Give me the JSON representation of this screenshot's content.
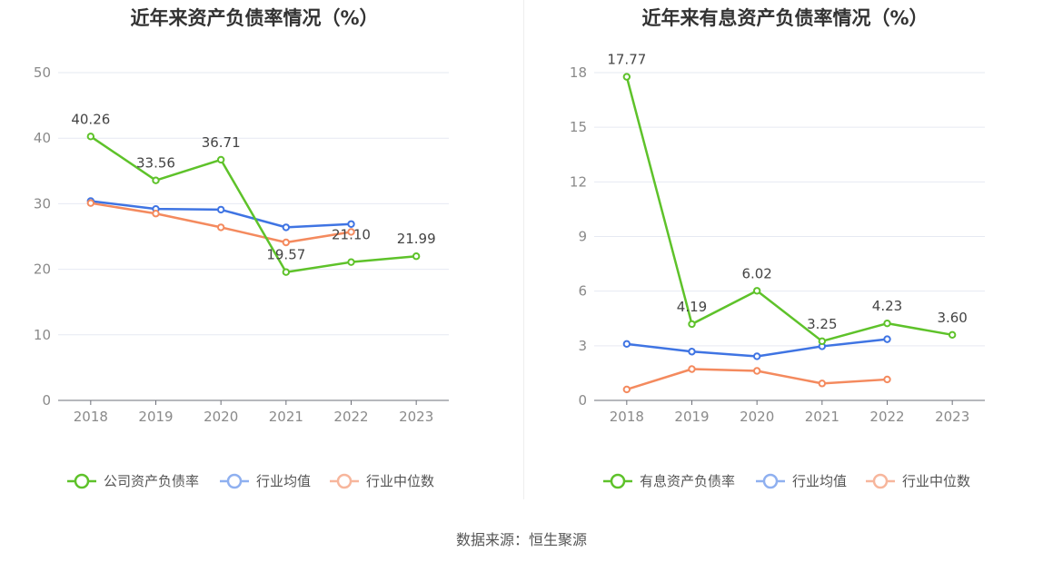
{
  "chart_data": [
    {
      "type": "line",
      "title": "近年来资产负债率情况（%）",
      "categories": [
        "2018",
        "2019",
        "2020",
        "2021",
        "2022",
        "2023"
      ],
      "ylim": [
        0,
        50
      ],
      "yticks": [
        0,
        10,
        20,
        30,
        40,
        50
      ],
      "ytick_labels": [
        "0",
        "10",
        "20",
        "30",
        "40",
        "50"
      ],
      "series": [
        {
          "name": "公司资产负债率",
          "color": "#5ec22a",
          "values": [
            40.26,
            33.56,
            36.71,
            19.57,
            21.1,
            21.99
          ],
          "labels": [
            "40.26",
            "33.56",
            "36.71",
            "19.57",
            "21.10",
            "21.99"
          ],
          "show_labels": true,
          "legend_color": "#5ec22a"
        },
        {
          "name": "行业均值",
          "color": "#3f74e3",
          "values": [
            30.4,
            29.2,
            29.1,
            26.4,
            26.9,
            null
          ],
          "show_labels": false,
          "legend_color": "#8fb0f0"
        },
        {
          "name": "行业中位数",
          "color": "#f48a5e",
          "values": [
            30.1,
            28.5,
            26.4,
            24.1,
            25.7,
            null
          ],
          "show_labels": false,
          "legend_color": "#f7b69c"
        }
      ]
    },
    {
      "type": "line",
      "title": "近年来有息资产负债率情况（%）",
      "categories": [
        "2018",
        "2019",
        "2020",
        "2021",
        "2022",
        "2023"
      ],
      "ylim": [
        0,
        18
      ],
      "yticks": [
        0,
        3,
        6,
        9,
        12,
        15,
        18
      ],
      "ytick_labels": [
        "0",
        "3",
        "6",
        "9",
        "12",
        "15",
        "18"
      ],
      "series": [
        {
          "name": "有息资产负债率",
          "color": "#5ec22a",
          "values": [
            17.77,
            4.19,
            6.02,
            3.25,
            4.23,
            3.6
          ],
          "labels": [
            "17.77",
            "4.19",
            "6.02",
            "3.25",
            "4.23",
            "3.60"
          ],
          "show_labels": true,
          "legend_color": "#5ec22a"
        },
        {
          "name": "行业均值",
          "color": "#3f74e3",
          "values": [
            3.1,
            2.68,
            2.42,
            2.97,
            3.36,
            null
          ],
          "show_labels": false,
          "legend_color": "#8fb0f0"
        },
        {
          "name": "行业中位数",
          "color": "#f48a5e",
          "values": [
            0.6,
            1.72,
            1.62,
            0.93,
            1.15,
            null
          ],
          "show_labels": false,
          "legend_color": "#f7b69c"
        }
      ]
    }
  ],
  "footer": {
    "source": "数据来源：恒生聚源"
  }
}
